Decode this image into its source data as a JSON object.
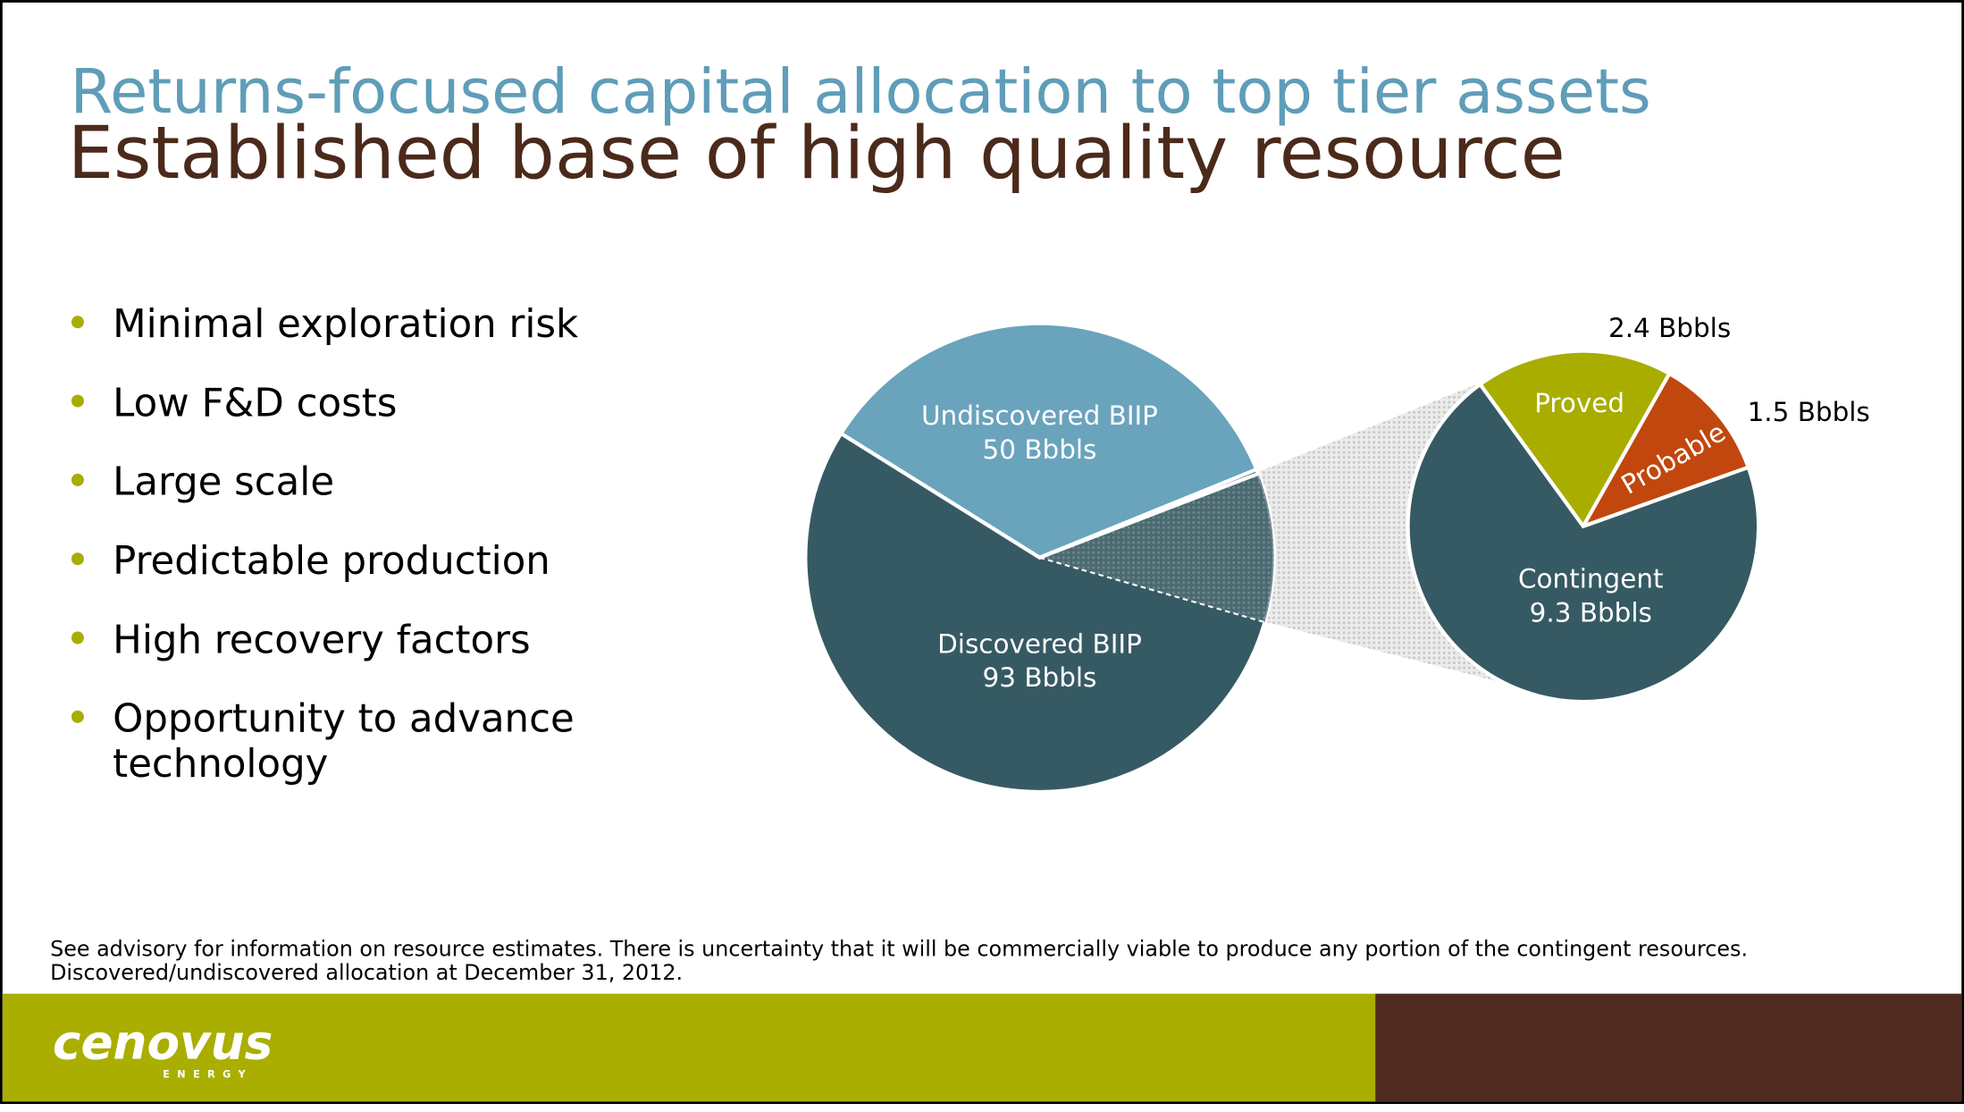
{
  "header": {
    "title": "Returns-focused capital allocation to top tier assets",
    "subtitle": "Established base of high quality resource"
  },
  "bullets": [
    "Minimal exploration risk",
    "Low F&D costs",
    "Large scale",
    "Predictable production",
    "High recovery factors",
    [
      "Opportunity to advance",
      "technology"
    ]
  ],
  "chart_data": [
    {
      "type": "pie",
      "categories": [
        "Undiscovered BIIP",
        "Discovered BIIP"
      ],
      "values": [
        50,
        93
      ],
      "value_labels": [
        "50 Bbbls",
        "93 Bbbls"
      ],
      "colors": [
        "#6aa3bc",
        "#365a63"
      ]
    },
    {
      "type": "pie",
      "categories": [
        "Proved",
        "Probable",
        "Contingent"
      ],
      "values": [
        2.4,
        1.5,
        9.3
      ],
      "value_labels": [
        "2.4 Bbbls",
        "1.5 Bbbls",
        "9.3 Bbbls"
      ],
      "colors": [
        "#a8ad00",
        "#c1470e",
        "#365a63"
      ]
    }
  ],
  "footnote": [
    "See advisory for information on resource estimates. There is uncertainty that it will be commercially viable to produce any portion of the contingent resources.",
    "Discovered/undiscovered allocation at December 31, 2012."
  ],
  "logo": {
    "name": "cenovus",
    "tagline": "ENERGY"
  }
}
